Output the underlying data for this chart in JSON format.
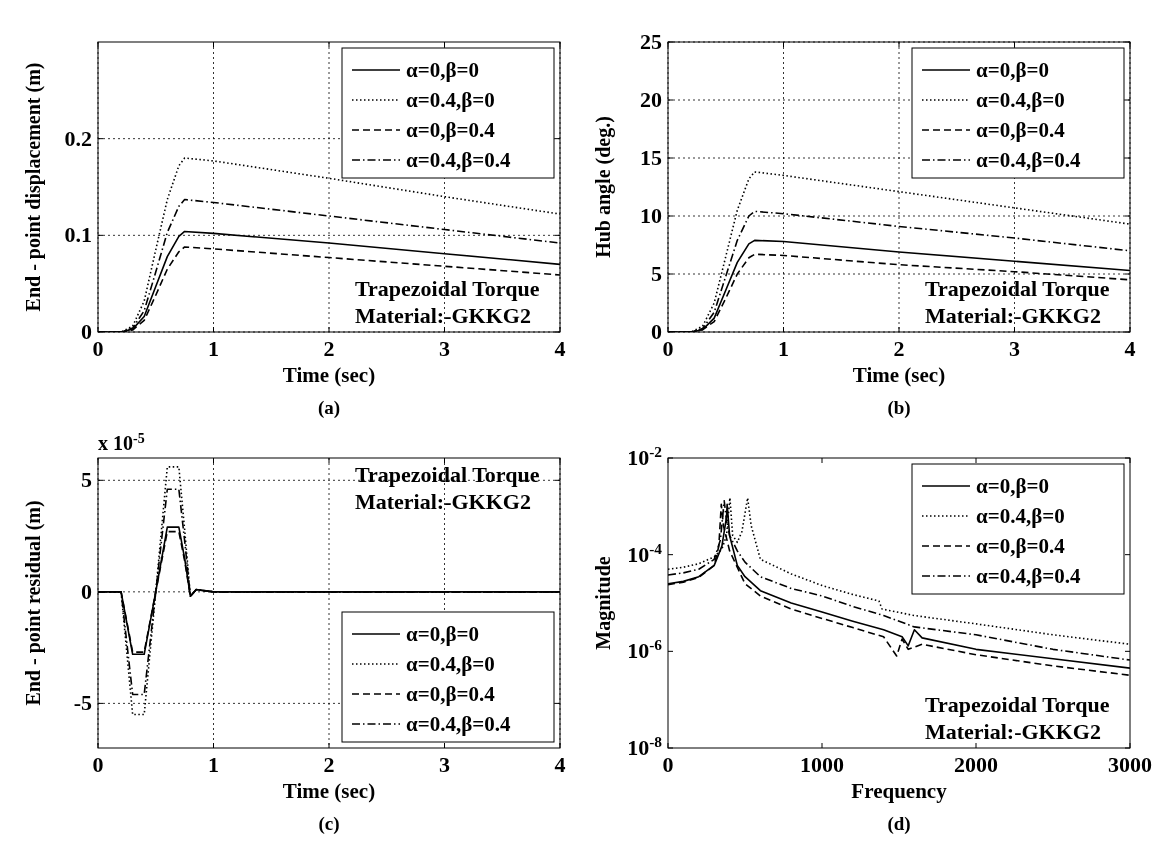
{
  "chart_data": [
    {
      "type": "line",
      "title": "(a)",
      "xlabel": "Time (sec)",
      "ylabel": "End - point displacement (m)",
      "xlim": [
        0,
        4
      ],
      "xticks": [
        0,
        1,
        2,
        3,
        4
      ],
      "ylim": [
        0,
        0.3
      ],
      "yticks": [
        0,
        0.1,
        0.2
      ],
      "grid": true,
      "legend": "top right",
      "annotations": [
        "Trapezoidal Torque",
        "Material:-GKKG2"
      ],
      "series": [
        {
          "name": "α=0,β=0",
          "color": "#000000",
          "line_style": "solid",
          "x": [
            0,
            0.2,
            0.3,
            0.4,
            0.5,
            0.6,
            0.7,
            0.75,
            1,
            2,
            3,
            4
          ],
          "values": [
            0,
            0,
            0.003,
            0.016,
            0.047,
            0.078,
            0.099,
            0.104,
            0.102,
            0.092,
            0.081,
            0.07
          ]
        },
        {
          "name": "α=0.4,β=0",
          "color": "#000000",
          "line_style": "dotted",
          "x": [
            0,
            0.2,
            0.3,
            0.4,
            0.5,
            0.6,
            0.7,
            0.75,
            1,
            2,
            3,
            4
          ],
          "values": [
            0,
            0,
            0.006,
            0.032,
            0.085,
            0.137,
            0.172,
            0.18,
            0.177,
            0.159,
            0.14,
            0.122
          ]
        },
        {
          "name": "α=0,β=0.4",
          "color": "#000000",
          "line_style": "dashed",
          "x": [
            0,
            0.2,
            0.3,
            0.4,
            0.5,
            0.6,
            0.7,
            0.75,
            1,
            2,
            3,
            4
          ],
          "values": [
            0,
            0,
            0.002,
            0.012,
            0.038,
            0.065,
            0.083,
            0.088,
            0.086,
            0.077,
            0.068,
            0.059
          ]
        },
        {
          "name": "α=0.4,β=0.4",
          "color": "#000000",
          "line_style": "dashdot",
          "x": [
            0,
            0.2,
            0.3,
            0.4,
            0.5,
            0.6,
            0.7,
            0.75,
            1,
            2,
            3,
            4
          ],
          "values": [
            0,
            0,
            0.004,
            0.022,
            0.062,
            0.103,
            0.13,
            0.137,
            0.134,
            0.12,
            0.106,
            0.092
          ]
        }
      ]
    },
    {
      "type": "line",
      "title": "(b)",
      "xlabel": "Time (sec)",
      "ylabel": "Hub angle (deg.)",
      "xlim": [
        0,
        4
      ],
      "xticks": [
        0,
        1,
        2,
        3,
        4
      ],
      "ylim": [
        0,
        25
      ],
      "yticks": [
        0,
        5,
        10,
        15,
        20,
        25
      ],
      "grid": true,
      "legend": "top right",
      "annotations": [
        "Trapezoidal Torque",
        "Material:-GKKG2"
      ],
      "series": [
        {
          "name": "α=0,β=0",
          "color": "#000000",
          "line_style": "solid",
          "x": [
            0,
            0.2,
            0.3,
            0.4,
            0.5,
            0.6,
            0.7,
            0.75,
            1,
            2,
            3,
            4
          ],
          "values": [
            0,
            0,
            0.2,
            1.2,
            3.6,
            6.0,
            7.6,
            7.9,
            7.8,
            6.9,
            6.1,
            5.3
          ]
        },
        {
          "name": "α=0.4,β=0",
          "color": "#000000",
          "line_style": "dotted",
          "x": [
            0,
            0.2,
            0.3,
            0.4,
            0.5,
            0.6,
            0.7,
            0.75,
            1,
            2,
            3,
            4
          ],
          "values": [
            0,
            0,
            0.5,
            2.5,
            6.5,
            10.5,
            13.2,
            13.8,
            13.5,
            12.1,
            10.7,
            9.3
          ]
        },
        {
          "name": "α=0,β=0.4",
          "color": "#000000",
          "line_style": "dashed",
          "x": [
            0,
            0.2,
            0.3,
            0.4,
            0.5,
            0.6,
            0.7,
            0.75,
            1,
            2,
            3,
            4
          ],
          "values": [
            0,
            0,
            0.2,
            0.9,
            2.9,
            5.0,
            6.4,
            6.7,
            6.6,
            5.8,
            5.2,
            4.5
          ]
        },
        {
          "name": "α=0.4,β=0.4",
          "color": "#000000",
          "line_style": "dashdot",
          "x": [
            0,
            0.2,
            0.3,
            0.4,
            0.5,
            0.6,
            0.7,
            0.75,
            1,
            2,
            3,
            4
          ],
          "values": [
            0,
            0,
            0.3,
            1.7,
            4.8,
            7.9,
            10.0,
            10.4,
            10.2,
            9.1,
            8.1,
            7.0
          ]
        }
      ]
    },
    {
      "type": "line",
      "title": "(c)",
      "xlabel": "Time (sec)",
      "ylabel": "End - point residual (m)",
      "xlim": [
        0,
        4
      ],
      "xticks": [
        0,
        1,
        2,
        3,
        4
      ],
      "ylim": [
        -7,
        6
      ],
      "yticks": [
        -5,
        0,
        5
      ],
      "grid": true,
      "legend": "bottom right",
      "annotations": [
        "Trapezoidal Torque",
        "Material:-GKKG2",
        "x 10$^{-5}$"
      ],
      "series": [
        {
          "name": "α=0,β=0",
          "color": "#000000",
          "line_style": "solid",
          "x": [
            0,
            0.2,
            0.3,
            0.4,
            0.5,
            0.6,
            0.7,
            0.75,
            0.8,
            0.85,
            1,
            1.4,
            4
          ],
          "values": [
            0,
            0,
            -2.8,
            -2.8,
            0,
            2.9,
            2.9,
            1.5,
            -0.2,
            0.1,
            0,
            0,
            0
          ]
        },
        {
          "name": "α=0.4,β=0",
          "color": "#000000",
          "line_style": "dotted",
          "x": [
            0,
            0.2,
            0.3,
            0.4,
            0.5,
            0.6,
            0.7,
            0.75,
            0.8,
            0.85,
            1,
            1.4,
            4
          ],
          "values": [
            0,
            0,
            -5.5,
            -5.5,
            0,
            5.6,
            5.6,
            2.8,
            -0.2,
            0.1,
            0,
            0,
            0
          ]
        },
        {
          "name": "α=0,β=0.4",
          "color": "#000000",
          "line_style": "dashed",
          "x": [
            0,
            0.2,
            0.3,
            0.4,
            0.5,
            0.6,
            0.7,
            0.75,
            0.8,
            0.85,
            1,
            1.4,
            4
          ],
          "values": [
            0,
            0,
            -2.7,
            -2.7,
            0,
            2.7,
            2.7,
            1.4,
            -0.2,
            0.1,
            0,
            0,
            0
          ]
        },
        {
          "name": "α=0.4,β=0.4",
          "color": "#000000",
          "line_style": "dashdot",
          "x": [
            0,
            0.2,
            0.3,
            0.4,
            0.5,
            0.6,
            0.7,
            0.75,
            0.8,
            0.85,
            1,
            1.4,
            4
          ],
          "values": [
            0,
            0,
            -4.6,
            -4.6,
            0,
            4.6,
            4.6,
            2.3,
            -0.2,
            0.1,
            0,
            0,
            0
          ]
        }
      ]
    },
    {
      "type": "line",
      "title": "(d)",
      "xlabel": "Frequency",
      "ylabel": "Magnitude",
      "xlim": [
        0,
        3000
      ],
      "xticks": [
        0,
        1000,
        2000,
        3000
      ],
      "ylim": [
        1e-08,
        0.01
      ],
      "yticks": [
        {
          "value": 1e-08,
          "label": "10$^{-8}$"
        },
        {
          "value": 1e-06,
          "label": "10$^{-6}$"
        },
        {
          "value": 0.0001,
          "label": "10$^{-4}$"
        },
        {
          "value": 0.01,
          "label": "10$^{-2}$"
        }
      ],
      "log": "y",
      "legend": "top right",
      "annotations": [
        "Trapezoidal Torque",
        "Material:-GKKG2"
      ],
      "series": [
        {
          "name": "α=0,β=0",
          "color": "#000000",
          "line_style": "solid",
          "x": [
            0,
            100,
            200,
            300,
            350,
            380,
            384,
            400,
            450,
            500,
            600,
            800,
            1000,
            1200,
            1400,
            1520,
            1560,
            1600,
            1650,
            2000,
            2500,
            3000
          ],
          "values": [
            2.5e-05,
            2.8e-05,
            3.5e-05,
            6e-05,
            0.00015,
            0.0006,
            0.0011,
            0.00025,
            6e-05,
            3.5e-05,
            1.8e-05,
            1e-05,
            6.5e-06,
            4.2e-06,
            2.8e-06,
            2e-06,
            1.3e-06,
            2.8e-06,
            1.9e-06,
            1.1e-06,
            7e-07,
            4.5e-07
          ]
        },
        {
          "name": "α=0.4,β=0",
          "color": "#000000",
          "line_style": "dotted",
          "x": [
            0,
            100,
            200,
            300,
            350,
            380,
            402,
            420,
            450,
            480,
            517,
            540,
            600,
            800,
            1000,
            1200,
            1370,
            1390,
            1600,
            2000,
            2500,
            3000
          ],
          "values": [
            5e-05,
            5.5e-05,
            6.5e-05,
            9e-05,
            0.00013,
            0.00025,
            0.0015,
            0.00025,
            0.00018,
            0.0003,
            0.0015,
            0.0004,
            8e-05,
            4e-05,
            2.3e-05,
            1.5e-05,
            1.1e-05,
            7.5e-06,
            5.5e-06,
            3.7e-06,
            2.2e-06,
            1.4e-06
          ]
        },
        {
          "name": "α=0,β=0.4",
          "color": "#000000",
          "line_style": "dashed",
          "x": [
            0,
            100,
            200,
            300,
            330,
            346,
            360,
            400,
            500,
            600,
            800,
            1000,
            1200,
            1400,
            1485,
            1520,
            1560,
            1650,
            2000,
            2500,
            3000
          ],
          "values": [
            2.4e-05,
            2.7e-05,
            3.4e-05,
            6e-05,
            0.00015,
            0.0011,
            0.0004,
            0.00012,
            2.5e-05,
            1.4e-05,
            7.5e-06,
            4.8e-06,
            3.1e-06,
            2e-06,
            8e-07,
            1.8e-06,
            1.1e-06,
            1.4e-06,
            8.5e-07,
            5e-07,
            3.2e-07
          ]
        },
        {
          "name": "α=0.4,β=0.4",
          "color": "#000000",
          "line_style": "dashdot",
          "x": [
            0,
            100,
            200,
            300,
            340,
            365,
            380,
            400,
            450,
            500,
            600,
            800,
            1000,
            1200,
            1400,
            1600,
            2000,
            2500,
            3000
          ],
          "values": [
            3.8e-05,
            4.2e-05,
            5e-05,
            8e-05,
            0.0002,
            0.0013,
            0.0005,
            0.00025,
            0.00012,
            7e-05,
            3.5e-05,
            2e-05,
            1.4e-05,
            8.5e-06,
            5.5e-06,
            3.2e-06,
            2.2e-06,
            1.1e-06,
            6.6e-07
          ]
        }
      ]
    }
  ]
}
